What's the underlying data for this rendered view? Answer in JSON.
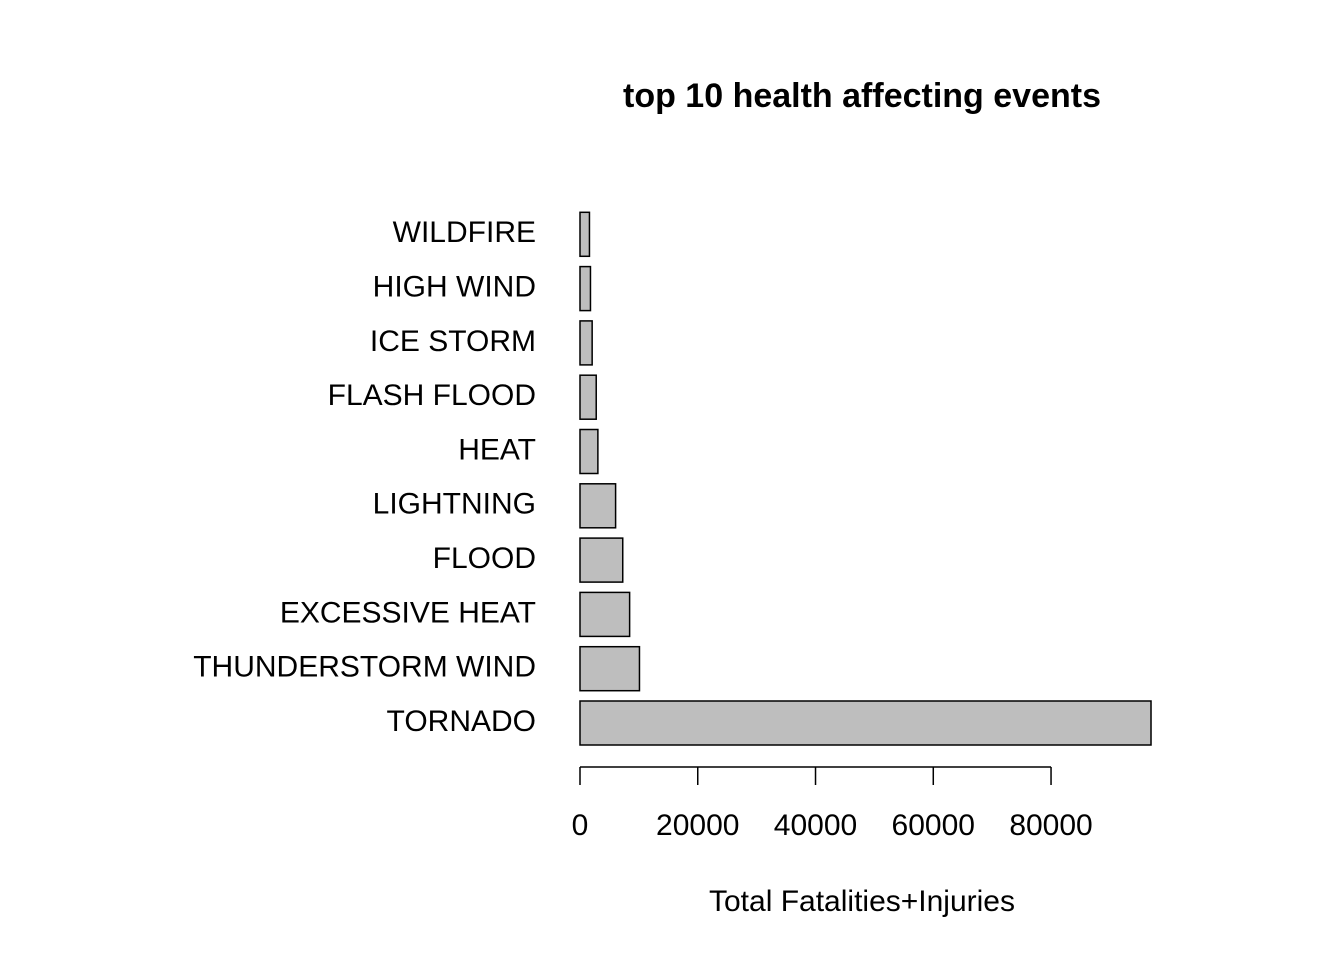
{
  "chart_data": {
    "type": "bar",
    "orientation": "horizontal",
    "title": "top 10 health affecting events",
    "x_label": "Total Fatalities+Injuries",
    "categories": [
      "TORNADO",
      "THUNDERSTORM WIND",
      "EXCESSIVE HEAT",
      "FLOOD",
      "LIGHTNING",
      "HEAT",
      "FLASH FLOOD",
      "ICE STORM",
      "HIGH WIND",
      "WILDFIRE"
    ],
    "values": [
      96979,
      10100,
      8428,
      7259,
      6046,
      3037,
      2755,
      2064,
      1777,
      1606
    ],
    "color": "#bebebe",
    "xlim": [
      0,
      100000
    ],
    "xticks": [
      0,
      20000,
      40000,
      60000,
      80000
    ]
  }
}
